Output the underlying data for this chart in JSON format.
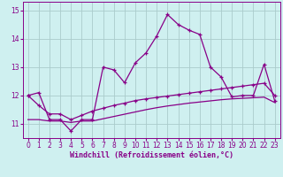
{
  "xlabel": "Windchill (Refroidissement éolien,°C)",
  "bg_color": "#cff0f0",
  "line_color": "#880088",
  "grid_color": "#aacccc",
  "hours": [
    0,
    1,
    2,
    3,
    4,
    5,
    6,
    7,
    8,
    9,
    10,
    11,
    12,
    13,
    14,
    15,
    16,
    17,
    18,
    19,
    20,
    21,
    22,
    23
  ],
  "windchill": [
    12.0,
    12.1,
    11.15,
    11.15,
    10.75,
    11.15,
    11.15,
    13.0,
    12.9,
    12.45,
    13.15,
    13.5,
    14.1,
    14.85,
    14.5,
    14.3,
    14.15,
    13.0,
    12.65,
    11.95,
    12.0,
    12.0,
    13.1,
    11.8
  ],
  "temp_line1": [
    12.0,
    11.65,
    11.35,
    11.35,
    11.15,
    11.3,
    11.45,
    11.55,
    11.65,
    11.73,
    11.82,
    11.88,
    11.93,
    11.98,
    12.03,
    12.08,
    12.13,
    12.18,
    12.23,
    12.28,
    12.33,
    12.38,
    12.43,
    12.0
  ],
  "temp_line2": [
    11.15,
    11.15,
    11.1,
    11.1,
    11.05,
    11.1,
    11.1,
    11.18,
    11.26,
    11.34,
    11.42,
    11.5,
    11.57,
    11.63,
    11.68,
    11.73,
    11.77,
    11.81,
    11.85,
    11.88,
    11.9,
    11.92,
    11.94,
    11.75
  ],
  "ylim_min": 10.5,
  "ylim_max": 15.3,
  "yticks": [
    11,
    12,
    13,
    14,
    15
  ],
  "xticks": [
    0,
    1,
    2,
    3,
    4,
    5,
    6,
    7,
    8,
    9,
    10,
    11,
    12,
    13,
    14,
    15,
    16,
    17,
    18,
    19,
    20,
    21,
    22,
    23
  ],
  "tick_fontsize": 5.5,
  "xlabel_fontsize": 6.0
}
